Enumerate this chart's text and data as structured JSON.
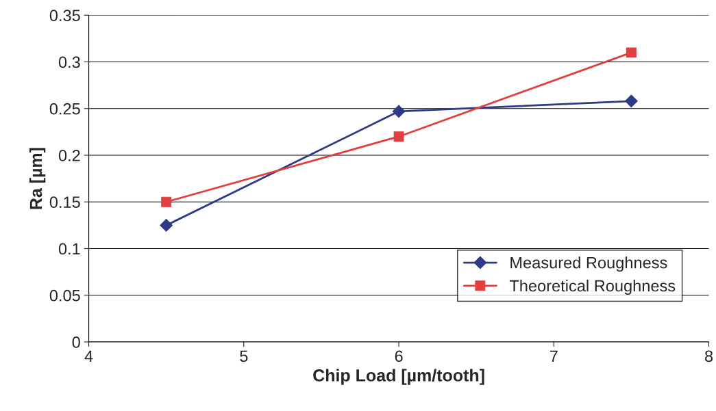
{
  "chart_data": {
    "type": "line",
    "xlabel": "Chip Load [µm/tooth]",
    "ylabel": "Ra [µm]",
    "x": [
      4.5,
      6,
      7.5
    ],
    "series": [
      {
        "name": "Measured Roughness",
        "color": "#2e3a87",
        "marker": "diamond",
        "values": [
          0.125,
          0.247,
          0.258
        ]
      },
      {
        "name": "Theoretical Roughness",
        "color": "#e04040",
        "marker": "square",
        "values": [
          0.15,
          0.22,
          0.31
        ]
      }
    ],
    "xlim": [
      4,
      8
    ],
    "xticks": [
      4,
      5,
      6,
      7,
      8
    ],
    "ylim": [
      0,
      0.35
    ],
    "yticks": [
      0,
      0.05,
      0.1,
      0.15,
      0.2,
      0.25,
      0.3,
      0.35
    ],
    "grid": "y",
    "legend": "bottom right",
    "line_style": "solid"
  }
}
